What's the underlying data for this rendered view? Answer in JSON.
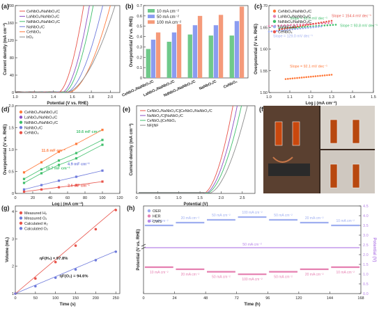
{
  "panels": {
    "a": {
      "letter": "(a)"
    },
    "b": {
      "letter": "(b)"
    },
    "c": {
      "letter": "(c)"
    },
    "d": {
      "letter": "(d)"
    },
    "e": {
      "letter": "(e)"
    },
    "f": {
      "letter": "(f)"
    },
    "g": {
      "letter": "(g)"
    },
    "h": {
      "letter": "(h)"
    }
  },
  "colors": {
    "red": "#e8534a",
    "purple": "#8b4fc4",
    "green": "#3fbf6b",
    "blue": "#6f7bdc",
    "orange": "#ff7a3c",
    "gray": "#8a8a8a",
    "pink": "#e57fb0",
    "lightblue": "#9eaef0",
    "violet": "#b784e8"
  },
  "chart_data": [
    {
      "id": "a",
      "type": "line",
      "xlabel": "Potential (V vs. RHE)",
      "ylabel": "Current density (mA cm⁻²)",
      "xlim": [
        1.0,
        2.1
      ],
      "ylim": [
        0,
        200
      ],
      "xticks": [
        "1.0",
        "1.2",
        "1.4",
        "1.6",
        "1.8",
        "2.0"
      ],
      "yticks": [
        "0",
        "40",
        "80",
        "120",
        "160",
        "200"
      ],
      "legend": [
        "CeNbO₄/NaNbO₃/C",
        "LaNbO₄/NaNbO₃/C",
        "NdNbO₄/NaNbO₃/C",
        "NaNbO₃/C",
        "CeNbO₄",
        "IrO₂"
      ],
      "series": [
        {
          "name": "CeNbO₄/NaNbO₃/C",
          "onset": 1.45,
          "end": 1.72
        },
        {
          "name": "LaNbO₄/NaNbO₃/C",
          "onset": 1.49,
          "end": 1.78
        },
        {
          "name": "NdNbO₄/NaNbO₃/C",
          "onset": 1.51,
          "end": 1.82
        },
        {
          "name": "NaNbO₃/C",
          "onset": 1.53,
          "end": 1.92
        },
        {
          "name": "CeNbO₄",
          "onset": 1.56,
          "end": 2.0
        },
        {
          "name": "IrO₂",
          "onset": 1.53,
          "end": 2.05
        }
      ]
    },
    {
      "id": "b",
      "type": "bar",
      "ylabel": "Overpotential (V vs. RHE)",
      "ylim": [
        0,
        0.7
      ],
      "yticks": [
        "0",
        "0.1",
        "0.2",
        "0.3",
        "0.4",
        "0.5",
        "0.6",
        "0.7"
      ],
      "categories": [
        "CeNbO₄/NaNbO₃/C",
        "LaNbO₄/NaNbO₃/C",
        "NdNbO₄/NaNbO₃/C",
        "NaNbO₃/C",
        "CeNbO₄"
      ],
      "series": [
        {
          "name": "10 mA cm⁻²",
          "values": [
            0.28,
            0.35,
            0.42,
            0.41,
            0.41
          ]
        },
        {
          "name": "50 mA cm⁻²",
          "values": [
            0.37,
            0.44,
            0.51,
            0.51,
            0.55
          ]
        },
        {
          "name": "100 mA cm⁻²",
          "values": [
            0.44,
            0.52,
            0.6,
            0.61,
            0.69
          ]
        }
      ]
    },
    {
      "id": "c",
      "type": "scatter",
      "xlabel": "Log j (mA cm⁻²)",
      "ylabel": "Overpotential (V vs. RHE)",
      "xlim": [
        1.0,
        1.5
      ],
      "ylim": [
        1.5,
        1.7
      ],
      "xticks": [
        "1.0",
        "1.1",
        "1.2",
        "1.3",
        "1.4",
        "1.5"
      ],
      "yticks": [
        "1.50",
        "1.55",
        "1.60",
        "1.65",
        "1.70"
      ],
      "legend": [
        "CeNbO₄/NaNbO₃/C",
        "LaNbO₄/NaNbO₃/C",
        "NdNbO₄/NaNbO₃/C",
        "NaNbO₃/C",
        "CeNbO₄"
      ],
      "series": [
        {
          "name": "CeNbO₄/NaNbO₃/C",
          "x0": 1.08,
          "x1": 1.3,
          "y0": 1.531,
          "y1": 1.541,
          "slope": "Slope = 92.1 mV dec⁻¹"
        },
        {
          "name": "LaNbO₄/NaNbO₃/C",
          "x0": 1.0,
          "x1": 1.3,
          "y0": 1.653,
          "y1": 1.66,
          "slope": "Slope = 93.0 mV dec⁻¹"
        },
        {
          "name": "NdNbO₄/NaNbO₃/C",
          "x0": 1.05,
          "x1": 1.32,
          "y0": 1.647,
          "y1": 1.656,
          "slope": "Slope = 93.8 mV dec⁻¹"
        },
        {
          "name": "NaNbO₃/C",
          "x0": 1.0,
          "x1": 1.25,
          "y0": 1.64,
          "y1": 1.652,
          "slope": "Slope = 129.0 mV dec⁻¹"
        },
        {
          "name": "CeNbO₄",
          "x0": 1.05,
          "x1": 1.3,
          "y0": 1.645,
          "y1": 1.665,
          "slope": "Slope = 154.4 mV dec⁻¹"
        }
      ]
    },
    {
      "id": "d",
      "type": "scatter",
      "xlabel": "Log j (mA cm⁻²)",
      "ylabel": "Overpotential (V vs. RHE)",
      "xlim": [
        0,
        120
      ],
      "ylim": [
        0,
        2.0
      ],
      "xticks": [
        "0",
        "20",
        "40",
        "60",
        "80",
        "100",
        "120"
      ],
      "yticks": [
        "0",
        "0.5",
        "1.0",
        "1.5",
        "2.0"
      ],
      "legend": [
        "CeNbO₄/NaNbO₃/C",
        "LaNbO₄/NaNbO₃/C",
        "NdNbO₄/NaNbO₃/C",
        "NaNbO₃/C",
        "CeNbO₄"
      ],
      "x": [
        10,
        30,
        50,
        70,
        100
      ],
      "series": [
        {
          "name": "CeNbO₄/NaNbO₃/C",
          "values": [
            0.48,
            0.71,
            0.95,
            1.13,
            1.45
          ],
          "label": "11.6 mF cm⁻²"
        },
        {
          "name": "LaNbO₄/NaNbO₃/C",
          "values": [
            0.33,
            0.55,
            0.75,
            0.92,
            1.22
          ],
          "label": "10.6 mF cm⁻²"
        },
        {
          "name": "NdNbO₄/NaNbO₃/C",
          "values": [
            0.24,
            0.46,
            0.65,
            0.8,
            1.11
          ],
          "label": "10.7 mF cm⁻²"
        },
        {
          "name": "NaNbO₃/C",
          "values": [
            0.09,
            0.19,
            0.29,
            0.38,
            0.52
          ],
          "label": "4.9 mF cm⁻²"
        },
        {
          "name": "CeNbO₄",
          "values": [
            0.04,
            0.09,
            0.14,
            0.19,
            0.27
          ],
          "label": "2.6 mF cm⁻²"
        }
      ]
    },
    {
      "id": "e",
      "type": "line",
      "xlabel": "Potential (V)",
      "ylabel": "Current density (mA cm⁻²)",
      "xlim": [
        0,
        2.8
      ],
      "ylim": [
        0,
        200
      ],
      "xticks": [
        "0",
        "0.5",
        "1.0",
        "1.5",
        "2.0",
        "2.5"
      ],
      "legend": [
        "CeNbO₄/NaNbO₃/C||CeNbO₄/NaNbO₃/C",
        "NaNbO₃/C||NaNbO₃/C",
        "CeNbO₄||CeNbO₄",
        "NF||NF"
      ],
      "series": [
        {
          "name": "CeNbO₄/NaNbO₃/C||CeNbO₄/NaNbO₃/C",
          "onset": 1.58,
          "end": 2.28
        },
        {
          "name": "NaNbO₃/C||NaNbO₃/C",
          "onset": 1.62,
          "end": 2.38
        },
        {
          "name": "CeNbO₄||CeNbO₄",
          "onset": 1.65,
          "end": 2.48
        },
        {
          "name": "NF||NF",
          "onset": 1.7,
          "end": 2.62
        }
      ]
    },
    {
      "id": "g",
      "type": "line",
      "xlabel": "Time (s)",
      "ylabel": "Volume (mL)",
      "xlim": [
        0,
        260
      ],
      "ylim": [
        1,
        4.2
      ],
      "xticks": [
        "0",
        "50",
        "100",
        "150",
        "200",
        "250"
      ],
      "yticks": [
        "1",
        "2",
        "3",
        "4"
      ],
      "legend": [
        "Measured H₂",
        "Measured O₂",
        "Calculated H₂",
        "Calculated O₂"
      ],
      "x": [
        0,
        50,
        100,
        150,
        200,
        250
      ],
      "series": [
        {
          "name": "Measured H₂",
          "values": [
            1.0,
            1.55,
            2.15,
            2.75,
            3.35,
            4.05
          ]
        },
        {
          "name": "Measured O₂",
          "values": [
            1.0,
            1.27,
            1.58,
            1.88,
            2.22,
            2.53
          ]
        },
        {
          "name": "Calculated H₂",
          "values": [
            1.0,
            1.62,
            2.24,
            2.86,
            3.48,
            4.1
          ]
        },
        {
          "name": "Calculated O₂",
          "values": [
            1.0,
            1.31,
            1.62,
            1.93,
            2.24,
            2.55
          ]
        }
      ],
      "annotations": [
        "ηF(H₂) = 97.8%",
        "ηF(O₂) = 94.6%"
      ]
    },
    {
      "id": "h",
      "type": "line",
      "xlabel": "Time (h)",
      "ylabel": "Potential (V vs. RHE)",
      "ylabel2": "Potential (V)",
      "xlim": [
        0,
        168
      ],
      "xticks": [
        "0",
        "24",
        "48",
        "72",
        "96",
        "120",
        "144",
        "168"
      ],
      "y2ticks": [
        "0.0",
        "0.5",
        "1.0",
        "1.5",
        "2.0",
        "2.5",
        "3.0",
        "3.5",
        "4.0",
        "4.5"
      ],
      "legend": [
        "OER",
        "HER",
        "OWS"
      ],
      "segments": [
        "10 mA cm⁻²",
        "20 mA cm⁻²",
        "50 mA cm⁻²",
        "100 mA cm⁻²",
        "50 mA cm⁻²",
        "20 mA cm⁻²",
        "10 mA cm⁻²"
      ],
      "ows_label": "50 mA cm⁻²",
      "oer_levels": [
        1.48,
        1.53,
        1.58,
        1.63,
        1.58,
        1.53,
        1.48
      ],
      "her_levels": [
        -0.28,
        -0.33,
        -0.39,
        -0.45,
        -0.39,
        -0.33,
        -0.28
      ]
    }
  ]
}
